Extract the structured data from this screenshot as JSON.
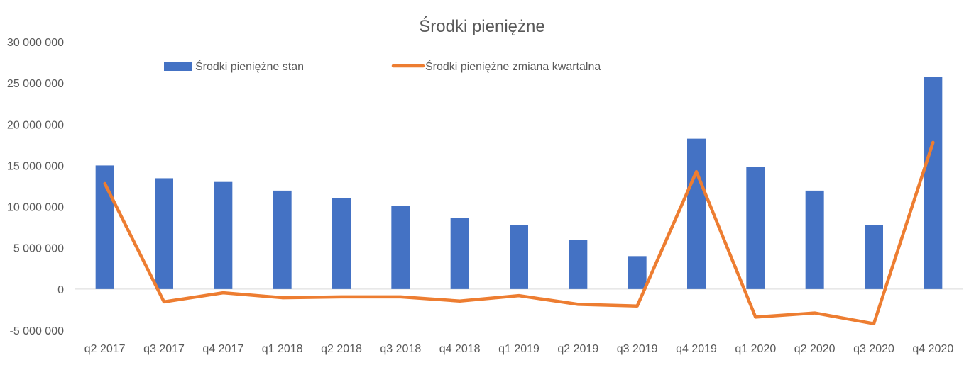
{
  "chart_data": {
    "type": "bar",
    "title": "Środki pieniężne",
    "xlabel": "",
    "ylabel": "",
    "categories": [
      "q2 2017",
      "q3 2017",
      "q4 2017",
      "q1 2018",
      "q2 2018",
      "q3 2018",
      "q4 2018",
      "q1 2019",
      "q2 2019",
      "q3 2019",
      "q4 2019",
      "q1 2020",
      "q2 2020",
      "q3 2020",
      "q4 2020"
    ],
    "series": [
      {
        "name": "Środki pieniężne stan",
        "type": "bar",
        "color": "#4472C4",
        "values": [
          15000000,
          13450000,
          13000000,
          11950000,
          11000000,
          10050000,
          8600000,
          7800000,
          6000000,
          4000000,
          18250000,
          14800000,
          11950000,
          7800000,
          25700000
        ]
      },
      {
        "name": "Środki pieniężne zmiana kwartalna",
        "type": "line",
        "color": "#ED7D31",
        "values": [
          12800000,
          -1550000,
          -450000,
          -1050000,
          -950000,
          -950000,
          -1450000,
          -800000,
          -1850000,
          -2050000,
          14250000,
          -3400000,
          -2900000,
          -4200000,
          17800000
        ]
      }
    ],
    "ylim": [
      -5000000,
      30000000
    ],
    "yticks": [
      -5000000,
      0,
      5000000,
      10000000,
      15000000,
      20000000,
      25000000,
      30000000
    ],
    "ytick_labels": [
      "-5 000 000",
      "0",
      "5 000 000",
      "10 000 000",
      "15 000 000",
      "20 000 000",
      "25 000 000",
      "30 000 000"
    ],
    "grid": false,
    "legend_position": "top"
  }
}
